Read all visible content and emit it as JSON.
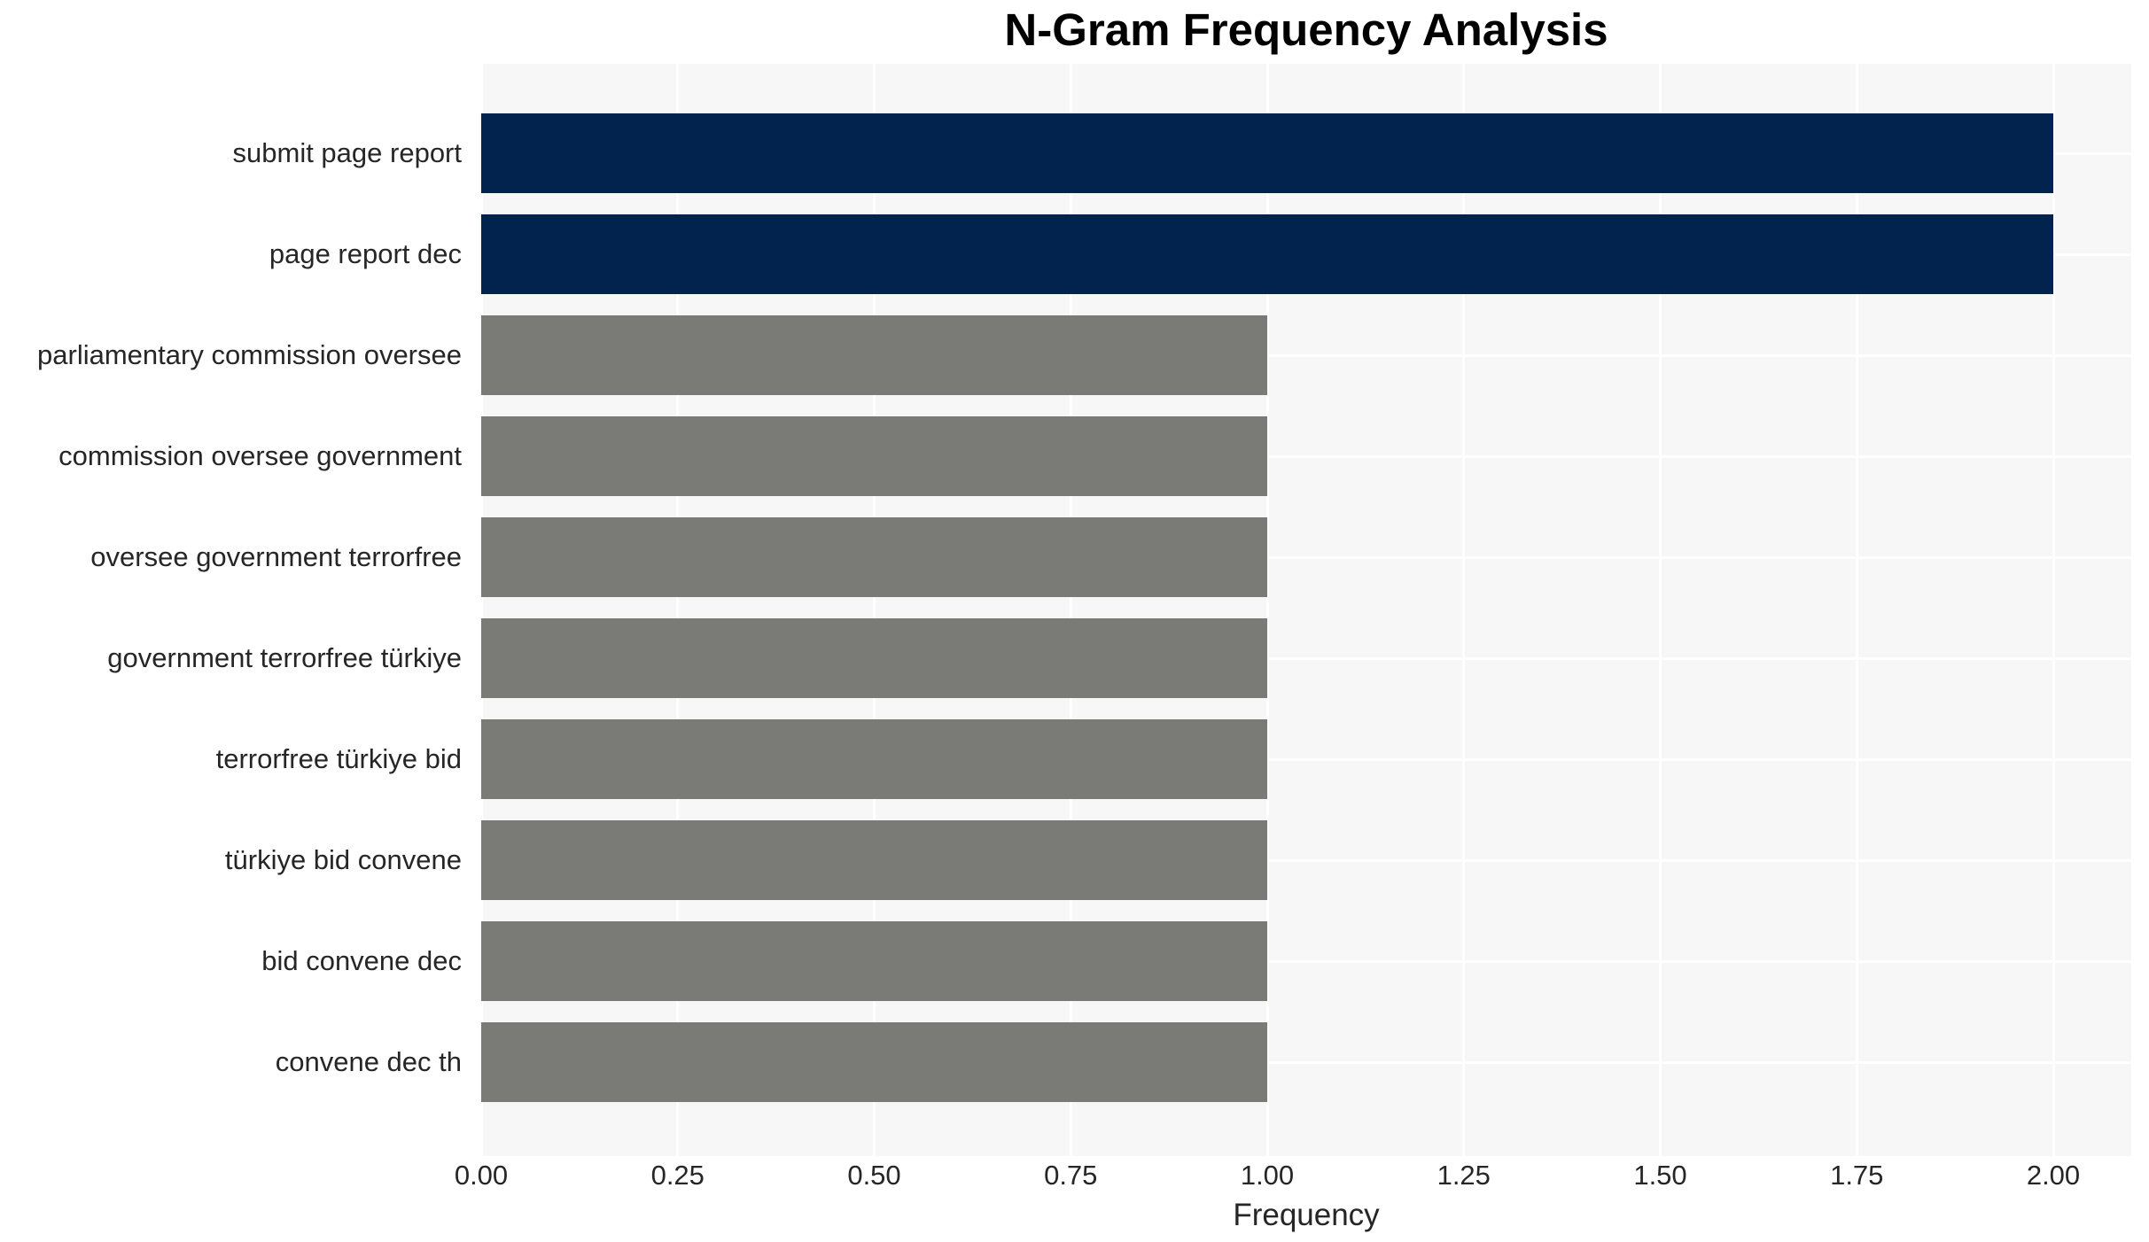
{
  "chart_data": {
    "type": "bar",
    "orientation": "horizontal",
    "title": "N-Gram Frequency Analysis",
    "xlabel": "Frequency",
    "ylabel": "",
    "categories": [
      "submit page report",
      "page report dec",
      "parliamentary commission oversee",
      "commission oversee government",
      "oversee government terrorfree",
      "government terrorfree türkiye",
      "terrorfree türkiye bid",
      "türkiye bid convene",
      "bid convene dec",
      "convene dec th"
    ],
    "values": [
      2,
      2,
      1,
      1,
      1,
      1,
      1,
      1,
      1,
      1
    ],
    "xlim": [
      0,
      2.1
    ],
    "xticks": [
      0,
      0.25,
      0.5,
      0.75,
      1,
      1.25,
      1.5,
      1.75,
      2
    ],
    "xtick_labels": [
      "0.00",
      "0.25",
      "0.50",
      "0.75",
      "1.00",
      "1.25",
      "1.50",
      "1.75",
      "2.00"
    ],
    "grid": true,
    "legend_position": "none",
    "colors": {
      "bar_high": "#02234e",
      "bar_low": "#7a7a76",
      "plot_background": "#f7f7f7",
      "figure_background": "#ffffff",
      "gridline": "#ffffff",
      "tick_text": "#262626",
      "title_text": "#000000"
    },
    "bar_colors": [
      "#02234e",
      "#02234e",
      "#7a7a76",
      "#7a7a76",
      "#7a7a76",
      "#7a7a76",
      "#7a7a76",
      "#7a7a76",
      "#7a7a76",
      "#7a7a76"
    ]
  }
}
